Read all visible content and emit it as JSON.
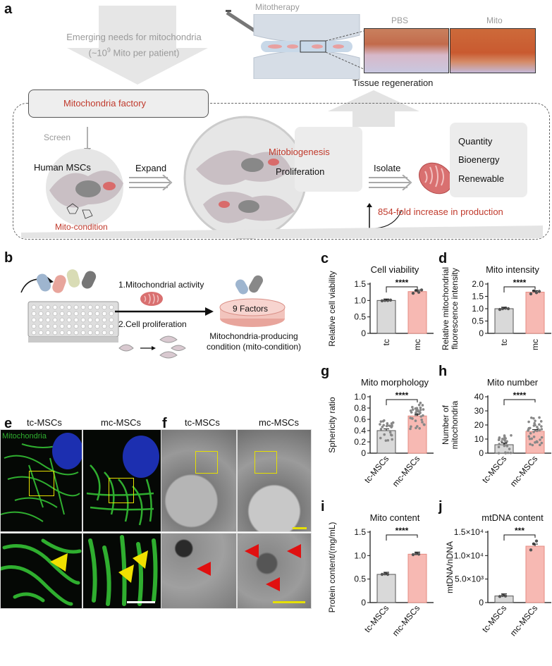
{
  "panels": {
    "a": "a",
    "b": "b",
    "c": "c",
    "d": "d",
    "e": "e",
    "f": "f",
    "g": "g",
    "h": "h",
    "i": "i",
    "j": "j"
  },
  "a": {
    "needs_line1": "Emerging needs for mitochondria",
    "needs_line2_pre": "(~10",
    "needs_line2_sup": "9",
    "needs_line2_post": " Mito per patient)",
    "mitotherapy": "Mitotherapy",
    "pbs": "PBS",
    "mito": "Mito",
    "tissue_regeneration": "Tissue regeneration",
    "factory": "Mitochondria factory",
    "screen": "Screen",
    "human_mscs": "Human MSCs",
    "mito_condition": "Mito-condition",
    "expand": "Expand",
    "mitobiogenesis": "Mitobiogenesis",
    "proliferation": "Proliferation",
    "isolate": "Isolate",
    "quantity": "Quantity",
    "bioenergy": "Bioenergy",
    "renewable": "Renewable",
    "fold_increase": "854-fold increase in production"
  },
  "b": {
    "step1": "1.Mitochondrial activity",
    "step2": "2.Cell proliferation",
    "factors": "9 Factors",
    "result_line1": "Mitochondria-producing",
    "result_line2": "condition (mito-condition)"
  },
  "e": {
    "tc": "tc-MSCs",
    "mc": "mc-MSCs",
    "stain": "Mitochondria"
  },
  "f": {
    "tc": "tc-MSCs",
    "mc": "mc-MSCs"
  },
  "colors": {
    "tc": "#d9d9d9",
    "mc": "#f7b9b3",
    "mc_edge": "#e58b82",
    "red": "#c0392b",
    "green": "#2fae2f"
  },
  "chart_data": [
    {
      "id": "c",
      "type": "bar",
      "title": "Cell viability",
      "ylabel": "Relative cell viability",
      "categories": [
        "tc",
        "mc"
      ],
      "values": [
        1.0,
        1.27
      ],
      "ylim": [
        0,
        1.5
      ],
      "yticks": [
        "0",
        "0.5",
        "1.0",
        "1.5"
      ],
      "ytick_values": [
        0,
        0.5,
        1.0,
        1.5
      ],
      "significance": "****",
      "points": [
        [
          0.99,
          1.0,
          1.0,
          1.01
        ],
        [
          1.22,
          1.3,
          1.25,
          1.32
        ]
      ]
    },
    {
      "id": "d",
      "type": "bar",
      "title": "Mito intensity",
      "ylabel": "Relative mitochondrial fluorescence intensity",
      "ylabel_lines": [
        "Relative mitochondrial",
        "fluorescence intensity"
      ],
      "categories": [
        "tc",
        "mc"
      ],
      "values": [
        1.0,
        1.67
      ],
      "ylim": [
        0,
        2.0
      ],
      "yticks": [
        "0",
        "0.5",
        "1.0",
        "1.5",
        "2.0"
      ],
      "ytick_values": [
        0,
        0.5,
        1.0,
        1.5,
        2.0
      ],
      "significance": "****",
      "points": [
        [
          0.97,
          1.0,
          1.02,
          1.0
        ],
        [
          1.6,
          1.72,
          1.65,
          1.7
        ]
      ]
    },
    {
      "id": "g",
      "type": "bar",
      "title": "Mito morphology",
      "ylabel": "Sphericity ratio",
      "categories": [
        "tc-MSCs",
        "mc-MSCs"
      ],
      "values": [
        0.4,
        0.66
      ],
      "ylim": [
        0,
        1.0
      ],
      "yticks": [
        "0",
        "0.2",
        "0.4",
        "0.6",
        "0.8",
        "1.0"
      ],
      "ytick_values": [
        0,
        0.2,
        0.4,
        0.6,
        0.8,
        1.0
      ],
      "significance": "****"
    },
    {
      "id": "h",
      "type": "bar",
      "title": "Mito number",
      "ylabel": "Number of mitochondria",
      "ylabel_lines": [
        "Number of",
        "mitochondria"
      ],
      "categories": [
        "tc-MSCs",
        "mc-MSCs"
      ],
      "values": [
        6,
        15.5
      ],
      "ylim": [
        0,
        40
      ],
      "yticks": [
        "0",
        "10",
        "20",
        "30",
        "40"
      ],
      "ytick_values": [
        0,
        10,
        20,
        30,
        40
      ],
      "significance": "****"
    },
    {
      "id": "i",
      "type": "bar",
      "title": "Mito content",
      "ylabel": "Protein content/(mg/mL)",
      "categories": [
        "tc-MSCs",
        "mc-MSCs"
      ],
      "values": [
        0.6,
        1.03
      ],
      "ylim": [
        0,
        1.5
      ],
      "yticks": [
        "0",
        "0.5",
        "1.0",
        "1.5"
      ],
      "ytick_values": [
        0,
        0.5,
        1.0,
        1.5
      ],
      "significance": "****",
      "points": [
        [
          0.6,
          0.61,
          0.6
        ],
        [
          1.02,
          1.04,
          1.03
        ]
      ]
    },
    {
      "id": "j",
      "type": "bar",
      "title": "mtDNA content",
      "ylabel": "mtDNA/nDNA",
      "categories": [
        "tc-MSCs",
        "mc-MSCs"
      ],
      "values": [
        1400,
        12000
      ],
      "ylim": [
        0,
        15000
      ],
      "yticks": [
        "0",
        "5.0×10³",
        "1.0×10⁴",
        "1.5×10⁴"
      ],
      "ytick_values": [
        0,
        5000,
        10000,
        15000
      ],
      "significance": "***",
      "points": [
        [
          1300,
          1500,
          1400
        ],
        [
          11200,
          12500,
          13100
        ]
      ]
    }
  ]
}
